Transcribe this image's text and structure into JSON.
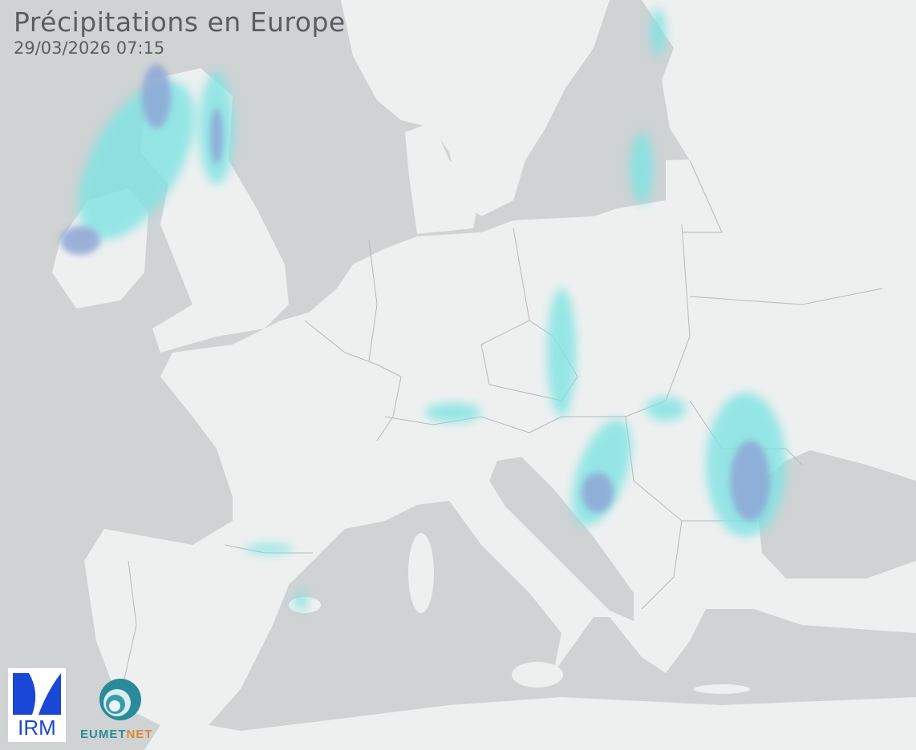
{
  "header": {
    "title": "Précipitations en Europe",
    "timestamp": "29/03/2026 07:15"
  },
  "colors": {
    "sea": "#cfd3d4",
    "land": "#eef0f0",
    "border": "#b5b8ba",
    "precip_light": "#7fe3e3",
    "precip_moderate": "#8ea6d6"
  },
  "logos": {
    "irm": "IRM",
    "eumetnet_a": "EUMET",
    "eumetnet_b": "NET"
  }
}
